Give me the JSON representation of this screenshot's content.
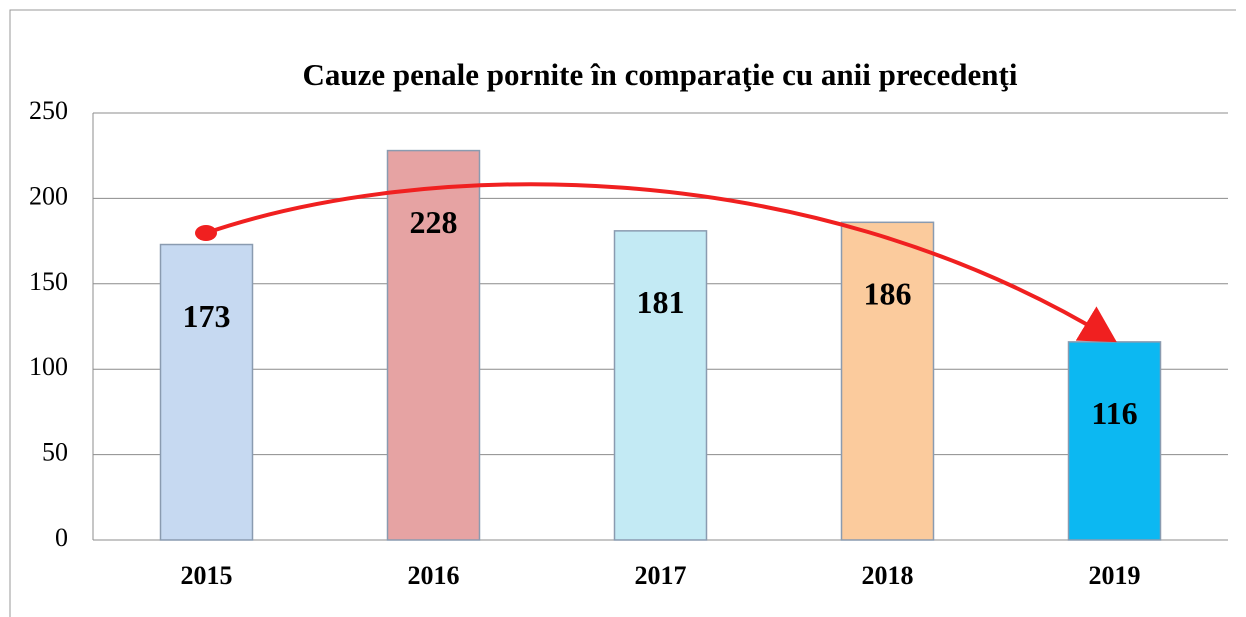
{
  "chart_data": {
    "type": "bar",
    "title": "Cauze penale pornite  în comparaţie cu anii precedenţi",
    "categories": [
      "2015",
      "2016",
      "2017",
      "2018",
      "2019"
    ],
    "values": [
      173,
      228,
      181,
      186,
      116
    ],
    "colors": [
      "#c6d9f1",
      "#e6a3a3",
      "#c3eaf4",
      "#fbcb9d",
      "#0cb8f2"
    ],
    "ylim": [
      0,
      250
    ],
    "yticks": [
      0,
      50,
      100,
      150,
      200,
      250
    ],
    "grid": true
  }
}
